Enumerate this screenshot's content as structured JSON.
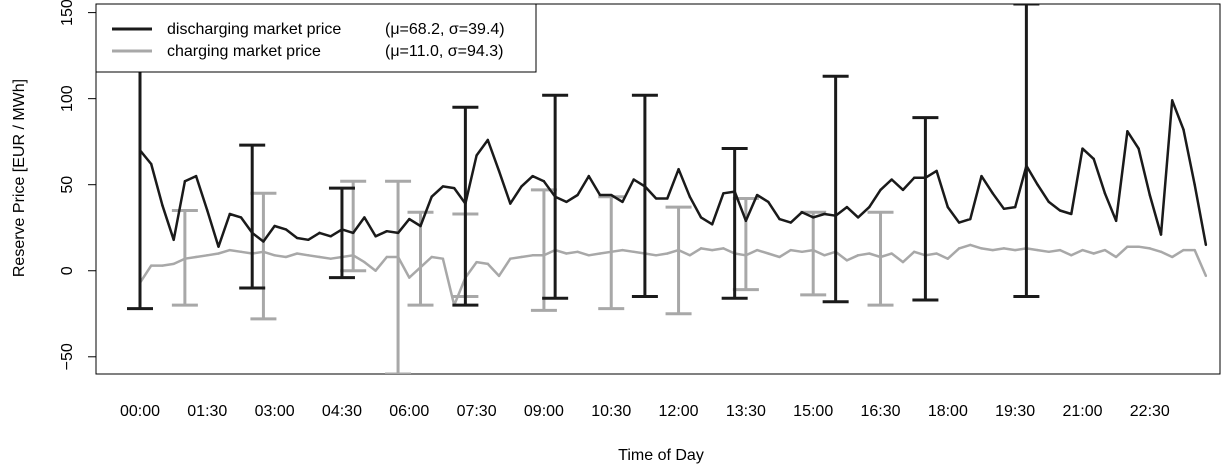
{
  "chart_data": {
    "type": "line",
    "xlabel": "Time of Day",
    "ylabel": "Reserve Price [EUR / MWh]",
    "ylim": [
      -60,
      155
    ],
    "yticks": [
      -50,
      0,
      50,
      100,
      150
    ],
    "x_tick_labels": [
      "00:00",
      "01:30",
      "03:00",
      "04:30",
      "06:00",
      "07:30",
      "09:00",
      "10:30",
      "12:00",
      "13:30",
      "15:00",
      "16:30",
      "18:00",
      "19:30",
      "21:00",
      "22:30"
    ],
    "x_tick_positions": [
      0,
      6,
      12,
      18,
      24,
      30,
      36,
      42,
      48,
      54,
      60,
      66,
      72,
      78,
      84,
      90
    ],
    "legend": {
      "position": "top-left",
      "entries": [
        {
          "line1": "discharging market price",
          "line2": "(μ=68.2, σ=39.4)"
        },
        {
          "line1": "charging market price",
          "line2": "(μ=11.0, σ=94.3)"
        }
      ]
    },
    "series": [
      {
        "name": "discharging market price",
        "color": "#1a1a1a",
        "values": [
          70,
          62,
          38,
          18,
          52,
          55,
          35,
          14,
          33,
          31,
          22,
          17,
          26,
          24,
          19,
          18,
          22,
          20,
          24,
          22,
          31,
          20,
          23,
          22,
          30,
          26,
          43,
          49,
          48,
          39,
          67,
          76,
          58,
          39,
          49,
          55,
          52,
          43,
          40,
          44,
          55,
          44,
          44,
          40,
          53,
          49,
          42,
          42,
          59,
          43,
          31,
          27,
          45,
          46,
          29,
          44,
          40,
          30,
          28,
          34,
          31,
          33,
          32,
          37,
          31,
          37,
          47,
          53,
          47,
          54,
          54,
          58,
          37,
          28,
          30,
          55,
          45,
          36,
          37,
          61,
          50,
          40,
          35,
          33,
          71,
          65,
          45,
          29,
          81,
          71,
          44,
          21,
          99,
          82,
          50,
          15
        ],
        "errorbars": [
          {
            "x": 0,
            "low": -22,
            "high": 120
          },
          {
            "x": 10,
            "low": -10,
            "high": 73
          },
          {
            "x": 18,
            "low": -4,
            "high": 48
          },
          {
            "x": 29,
            "low": -20,
            "high": 95
          },
          {
            "x": 37,
            "low": -16,
            "high": 102
          },
          {
            "x": 45,
            "low": -15,
            "high": 102
          },
          {
            "x": 53,
            "low": -16,
            "high": 71
          },
          {
            "x": 62,
            "low": -18,
            "high": 113
          },
          {
            "x": 70,
            "low": -17,
            "high": 89
          },
          {
            "x": 79,
            "low": -15,
            "high": 155
          }
        ]
      },
      {
        "name": "charging market price",
        "color": "#a8a8a8",
        "values": [
          -7,
          3,
          3,
          4,
          7,
          8,
          9,
          10,
          12,
          11,
          10,
          11,
          9,
          8,
          10,
          9,
          8,
          7,
          8,
          9,
          5,
          0,
          8,
          8,
          -4,
          2,
          8,
          7,
          -20,
          -4,
          5,
          4,
          -3,
          7,
          8,
          9,
          9,
          12,
          10,
          11,
          9,
          10,
          11,
          12,
          11,
          10,
          9,
          10,
          12,
          9,
          13,
          12,
          13,
          10,
          9,
          12,
          10,
          8,
          12,
          11,
          12,
          9,
          11,
          6,
          9,
          10,
          8,
          10,
          5,
          11,
          9,
          10,
          7,
          13,
          15,
          13,
          12,
          13,
          12,
          13,
          12,
          11,
          12,
          9,
          12,
          10,
          12,
          8,
          14,
          14,
          13,
          11,
          8,
          12,
          12,
          -3
        ],
        "errorbars": [
          {
            "x": 4,
            "low": -20,
            "high": 35
          },
          {
            "x": 11,
            "low": -28,
            "high": 45
          },
          {
            "x": 19,
            "low": 0,
            "high": 52
          },
          {
            "x": 23,
            "low": -60,
            "high": 52
          },
          {
            "x": 25,
            "low": -20,
            "high": 34
          },
          {
            "x": 29,
            "low": -15,
            "high": 33
          },
          {
            "x": 36,
            "low": -23,
            "high": 47
          },
          {
            "x": 42,
            "low": -22,
            "high": 43
          },
          {
            "x": 48,
            "low": -25,
            "high": 37
          },
          {
            "x": 54,
            "low": -11,
            "high": 42
          },
          {
            "x": 60,
            "low": -14,
            "high": 34
          },
          {
            "x": 66,
            "low": -20,
            "high": 34
          }
        ]
      }
    ]
  }
}
